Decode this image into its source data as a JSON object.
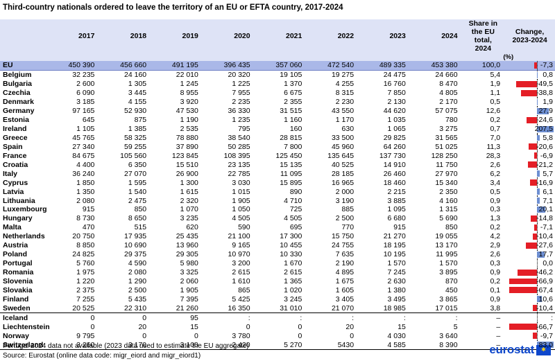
{
  "title": "Third-country nationals ordered to leave the territory of an EU or EFTA country, 2017-2024",
  "header": {
    "years": [
      "2017",
      "2018",
      "2019",
      "2020",
      "2021",
      "2022",
      "2023",
      "2024"
    ],
    "share_label": "Share in the EU total, 2024",
    "change_label": "Change, 2023-2024",
    "unit": "(%)"
  },
  "rows": [
    {
      "name": "EU",
      "v": [
        "450 390",
        "456 660",
        "491 195",
        "396 435",
        "357 060",
        "472 540",
        "489 335",
        "453 380"
      ],
      "share": "100,0",
      "change": "-7,3",
      "change_value": -7.3
    },
    {
      "name": "Belgium",
      "v": [
        "32 235",
        "24 160",
        "22 010",
        "20 320",
        "19 105",
        "19 275",
        "24 475",
        "24 660"
      ],
      "share": "5,4",
      "change": "0,8",
      "change_value": 0.8
    },
    {
      "name": "Bulgaria",
      "v": [
        "2 600",
        "1 305",
        "1 245",
        "1 225",
        "1 370",
        "4 255",
        "16 760",
        "8 470"
      ],
      "share": "1,9",
      "change": "-49,5",
      "change_value": -49.5
    },
    {
      "name": "Czechia",
      "v": [
        "6 090",
        "3 445",
        "8 955",
        "7 955",
        "6 675",
        "8 315",
        "7 850",
        "4 805"
      ],
      "share": "1,1",
      "change": "-38,8",
      "change_value": -38.8
    },
    {
      "name": "Denmark",
      "v": [
        "3 185",
        "4 155",
        "3 920",
        "2 235",
        "2 355",
        "2 230",
        "2 130",
        "2 170"
      ],
      "share": "0,5",
      "change": "1,9",
      "change_value": 1.9
    },
    {
      "name": "Germany",
      "v": [
        "97 165",
        "52 930",
        "47 530",
        "36 330",
        "31 515",
        "43 550",
        "44 620",
        "57 075"
      ],
      "share": "12,6",
      "change": "27,9",
      "change_value": 27.9
    },
    {
      "name": "Estonia",
      "v": [
        "645",
        "875",
        "1 190",
        "1 235",
        "1 160",
        "1 170",
        "1 035",
        "780"
      ],
      "share": "0,2",
      "change": "-24,6",
      "change_value": -24.6
    },
    {
      "name": "Ireland",
      "v": [
        "1 105",
        "1 385",
        "2 535",
        "795",
        "160",
        "630",
        "1 065",
        "3 275"
      ],
      "share": "0,7",
      "change": "207,5",
      "change_value": 207.5
    },
    {
      "name": "Greece",
      "v": [
        "45 765",
        "58 325",
        "78 880",
        "38 540",
        "28 815",
        "33 500",
        "29 825",
        "31 565"
      ],
      "share": "7,0",
      "change": "5,8",
      "change_value": 5.8
    },
    {
      "name": "Spain",
      "v": [
        "27 340",
        "59 255",
        "37 890",
        "50 285",
        "7 800",
        "45 960",
        "64 260",
        "51 025"
      ],
      "share": "11,3",
      "change": "-20,6",
      "change_value": -20.6
    },
    {
      "name": "France",
      "v": [
        "84 675",
        "105 560",
        "123 845",
        "108 395",
        "125 450",
        "135 645",
        "137 730",
        "128 250"
      ],
      "share": "28,3",
      "change": "-6,9",
      "change_value": -6.9
    },
    {
      "name": "Croatia",
      "v": [
        "4 400",
        "6 350",
        "15 510",
        "23 135",
        "15 135",
        "40 525",
        "14 910",
        "11 750"
      ],
      "share": "2,6",
      "change": "-21,2",
      "change_value": -21.2
    },
    {
      "name": "Italy",
      "v": [
        "36 240",
        "27 070",
        "26 900",
        "22 785",
        "11 095",
        "28 185",
        "26 460",
        "27 970"
      ],
      "share": "6,2",
      "change": "5,7",
      "change_value": 5.7
    },
    {
      "name": "Cyprus",
      "v": [
        "1 850",
        "1 595",
        "1 300",
        "3 030",
        "15 895",
        "16 965",
        "18 460",
        "15 340"
      ],
      "share": "3,4",
      "change": "-16,9",
      "change_value": -16.9
    },
    {
      "name": "Latvia",
      "v": [
        "1 350",
        "1 540",
        "1 615",
        "1 015",
        "890",
        "2 000",
        "2 215",
        "2 350"
      ],
      "share": "0,5",
      "change": "6,1",
      "change_value": 6.1
    },
    {
      "name": "Lithuania",
      "v": [
        "2 080",
        "2 475",
        "2 320",
        "1 905",
        "4 710",
        "3 190",
        "3 885",
        "4 160"
      ],
      "share": "0,9",
      "change": "7,1",
      "change_value": 7.1
    },
    {
      "name": "Luxembourg",
      "v": [
        "915",
        "850",
        "1 070",
        "1 050",
        "725",
        "885",
        "1 095",
        "1 315"
      ],
      "share": "0,3",
      "change": "20,1",
      "change_value": 20.1
    },
    {
      "name": "Hungary",
      "v": [
        "8 730",
        "8 650",
        "3 235",
        "4 505",
        "4 505",
        "2 500",
        "6 680",
        "5 690"
      ],
      "share": "1,3",
      "change": "-14,8",
      "change_value": -14.8
    },
    {
      "name": "Malta",
      "v": [
        "470",
        "515",
        "620",
        "590",
        "695",
        "770",
        "915",
        "850"
      ],
      "share": "0,2",
      "change": "-7,1",
      "change_value": -7.1
    },
    {
      "name": "Netherlands",
      "v": [
        "20 750",
        "17 935",
        "25 435",
        "21 100",
        "17 300",
        "15 750",
        "21 270",
        "19 055"
      ],
      "share": "4,2",
      "change": "-10,4",
      "change_value": -10.4
    },
    {
      "name": "Austria",
      "v": [
        "8 850",
        "10 690",
        "13 960",
        "9 165",
        "10 455",
        "24 755",
        "18 195",
        "13 170"
      ],
      "share": "2,9",
      "change": "-27,6",
      "change_value": -27.6
    },
    {
      "name": "Poland",
      "v": [
        "24 825",
        "29 375",
        "29 305",
        "10 970",
        "10 330",
        "7 635",
        "10 195",
        "11 995"
      ],
      "share": "2,6",
      "change": "17,7",
      "change_value": 17.7
    },
    {
      "name": "Portugal",
      "v": [
        "5 760",
        "4 590",
        "5 980",
        "3 200",
        "1 670",
        "2 190",
        "1 570",
        "1 570"
      ],
      "share": "0,3",
      "change": "0,0",
      "change_value": 0.0
    },
    {
      "name": "Romania",
      "v": [
        "1 975",
        "2 080",
        "3 325",
        "2 615",
        "2 615",
        "4 895",
        "7 245",
        "3 895"
      ],
      "share": "0,9",
      "change": "-46,2",
      "change_value": -46.2
    },
    {
      "name": "Slovenia",
      "v": [
        "1 220",
        "1 290",
        "2 060",
        "1 610",
        "1 365",
        "1 675",
        "2 630",
        "870"
      ],
      "share": "0,2",
      "change": "-66,9",
      "change_value": -66.9
    },
    {
      "name": "Slovakia",
      "v": [
        "2 375",
        "2 500",
        "1 905",
        "865",
        "1 020",
        "1 605",
        "1 380",
        "450"
      ],
      "share": "0,1",
      "change": "-67,4",
      "change_value": -67.4
    },
    {
      "name": "Finland",
      "v": [
        "7 255",
        "5 435",
        "7 395",
        "5 425",
        "3 245",
        "3 405",
        "3 495",
        "3 865"
      ],
      "share": "0,9",
      "change": "10,6",
      "change_value": 10.6
    },
    {
      "name": "Sweden",
      "v": [
        "20 525",
        "22 310",
        "21 260",
        "16 350",
        "31 010",
        "21 070",
        "18 985",
        "17 015"
      ],
      "share": "3,8",
      "change": "-10,4",
      "change_value": -10.4
    },
    {
      "name": "Iceland",
      "v": [
        "0",
        "0",
        "95",
        ":",
        ":",
        ":",
        ":",
        ":"
      ],
      "share": "–",
      "change": ":",
      "change_value": null
    },
    {
      "name": "Liechtenstein",
      "v": [
        "0",
        "20",
        "15",
        "0",
        "0",
        "20",
        "15",
        "5"
      ],
      "share": "–",
      "change": "-66,7",
      "change_value": -66.7
    },
    {
      "name": "Norway",
      "v": [
        "9 795",
        "0",
        "0",
        "3 780",
        "0",
        "0",
        "4 030",
        "3 640"
      ],
      "share": "–",
      "change": "-9,7",
      "change_value": -9.7
    },
    {
      "name": "Switzerland",
      "v": [
        "3 260",
        "3 170",
        "3 100",
        "2 420",
        "5 270",
        "5430",
        "4 585",
        "8 390"
      ],
      "share": "–",
      "change": "83,0",
      "change_value": 83.0
    }
  ],
  "footnote": "Portugal 2024 data not available (2023 data used to estimate the EU aggregate)",
  "source": "Source: Eurostat (online data code: migr_eiord and migr_eiord1)",
  "logo": "eurostat",
  "colors": {
    "header_bg": "#dee3f6",
    "eu_row_bg": "#aab8e8",
    "negative_bar": "#e41e26",
    "positive_bar": "#6e8fd2",
    "logo_blue": "#0e47cb"
  }
}
